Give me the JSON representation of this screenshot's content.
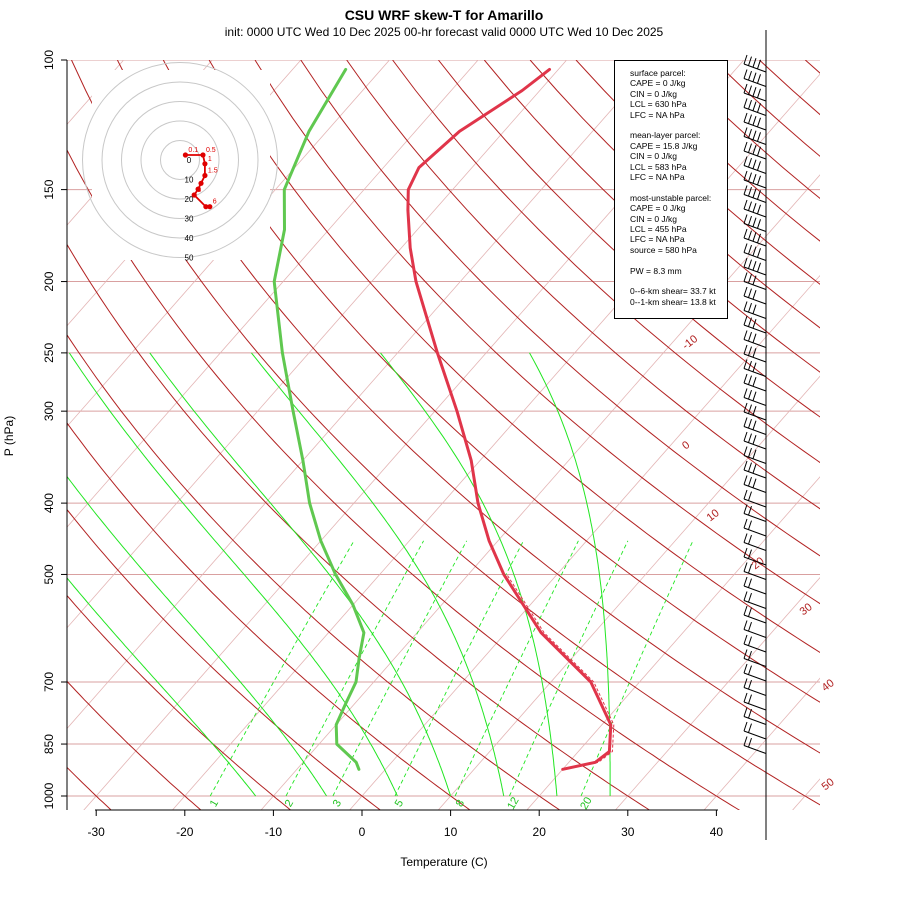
{
  "title": "CSU WRF skew-T for Amarillo",
  "subtitle": "init: 0000 UTC Wed 10 Dec 2025     00-hr forecast valid 0000 UTC Wed 10 Dec 2025",
  "chart_data": {
    "type": "line",
    "title": "CSU WRF skew-T for Amarillo",
    "subtitle": "init: 0000 UTC Wed 10 Dec 2025     00-hr forecast valid 0000 UTC Wed 10 Dec 2025",
    "xlabel": "Temperature (C)",
    "ylabel": "P (hPa)",
    "x_ticks": [
      "-30",
      "-20",
      "-10",
      "0",
      "10",
      "20",
      "30",
      "40"
    ],
    "y_ticks": [
      "100",
      "150",
      "200",
      "250",
      "300",
      "400",
      "500",
      "700",
      "850",
      "1000"
    ],
    "xlim": [
      -33,
      43
    ],
    "ylim": [
      1050,
      100
    ],
    "y_scale": "log",
    "x_skewed": true,
    "isotherm_labels": [
      "-10",
      "0",
      "10",
      "20",
      "30",
      "40",
      "50"
    ],
    "mixing_ratio_labels": [
      "1",
      "2",
      "3",
      "5",
      "8",
      "12",
      "20"
    ],
    "series": [
      {
        "name": "",
        "color": "#e0354a",
        "values": [
          [
            920,
            20
          ],
          [
            900,
            23
          ],
          [
            870,
            23.5
          ],
          [
            800,
            21
          ],
          [
            700,
            14.5
          ],
          [
            600,
            4
          ],
          [
            500,
            -6
          ],
          [
            450,
            -11
          ],
          [
            400,
            -16
          ],
          [
            350,
            -21
          ],
          [
            300,
            -27.5
          ],
          [
            250,
            -35.5
          ],
          [
            200,
            -45
          ],
          [
            180,
            -49
          ],
          [
            160,
            -53
          ],
          [
            150,
            -55
          ],
          [
            140,
            -56
          ],
          [
            125,
            -55
          ],
          [
            110,
            -52
          ],
          [
            103,
            -51
          ]
        ]
      },
      {
        "name": "",
        "color": "#60c850",
        "values": [
          [
            920,
            -3
          ],
          [
            900,
            -4
          ],
          [
            850,
            -8
          ],
          [
            800,
            -10
          ],
          [
            750,
            -11
          ],
          [
            700,
            -12
          ],
          [
            650,
            -14
          ],
          [
            600,
            -16
          ],
          [
            550,
            -20
          ],
          [
            500,
            -25
          ],
          [
            450,
            -30
          ],
          [
            400,
            -35
          ],
          [
            350,
            -40
          ],
          [
            300,
            -46
          ],
          [
            250,
            -53
          ],
          [
            200,
            -61
          ],
          [
            170,
            -65
          ],
          [
            150,
            -69
          ],
          [
            125,
            -72
          ],
          [
            103,
            -74
          ]
        ]
      }
    ],
    "hodograph_rings": [
      "0",
      "10",
      "20",
      "30",
      "40",
      "50"
    ],
    "hodograph_points": [
      {
        "label": "0.1",
        "u": -8.5,
        "v": 0.5
      },
      {
        "label": "0.5",
        "u": 0.5,
        "v": 0.5
      },
      {
        "label": "1",
        "u": 1.5,
        "v": -4
      },
      {
        "label": "1.5",
        "u": 1.5,
        "v": -10
      },
      {
        "label": "",
        "u": -0.5,
        "v": -14
      },
      {
        "label": "",
        "u": -2,
        "v": -17
      },
      {
        "label": "3",
        "u": -4,
        "v": -20
      },
      {
        "label": "",
        "u": 2,
        "v": -26
      },
      {
        "label": "6",
        "u": 4,
        "v": -26
      }
    ]
  },
  "parcel_info": [
    "surface parcel:",
    "CAPE = 0 J/kg",
    "CIN = 0 J/kg",
    "LCL = 630 hPa",
    "LFC = NA hPa",
    "",
    "mean-layer parcel:",
    "CAPE = 15.8 J/kg",
    "CIN = 0 J/kg",
    "LCL = 583 hPa",
    "LFC = NA hPa",
    "",
    "most-unstable parcel:",
    "CAPE = 0 J/kg",
    "CIN = 0 J/kg",
    "LCL = 455 hPa",
    "LFC = NA hPa",
    "source = 580 hPa",
    "",
    "PW =  8.3 mm",
    "",
    "0--6-km shear= 33.7 kt",
    "0--1-km shear= 13.8 kt"
  ],
  "colors": {
    "isotherm": "#b22222",
    "mixing_ratio": "#22e622",
    "moist_adiabat": "#22e622",
    "temperature": "#e0354a",
    "dewpoint": "#60c850",
    "hodograph": "#e00000"
  }
}
